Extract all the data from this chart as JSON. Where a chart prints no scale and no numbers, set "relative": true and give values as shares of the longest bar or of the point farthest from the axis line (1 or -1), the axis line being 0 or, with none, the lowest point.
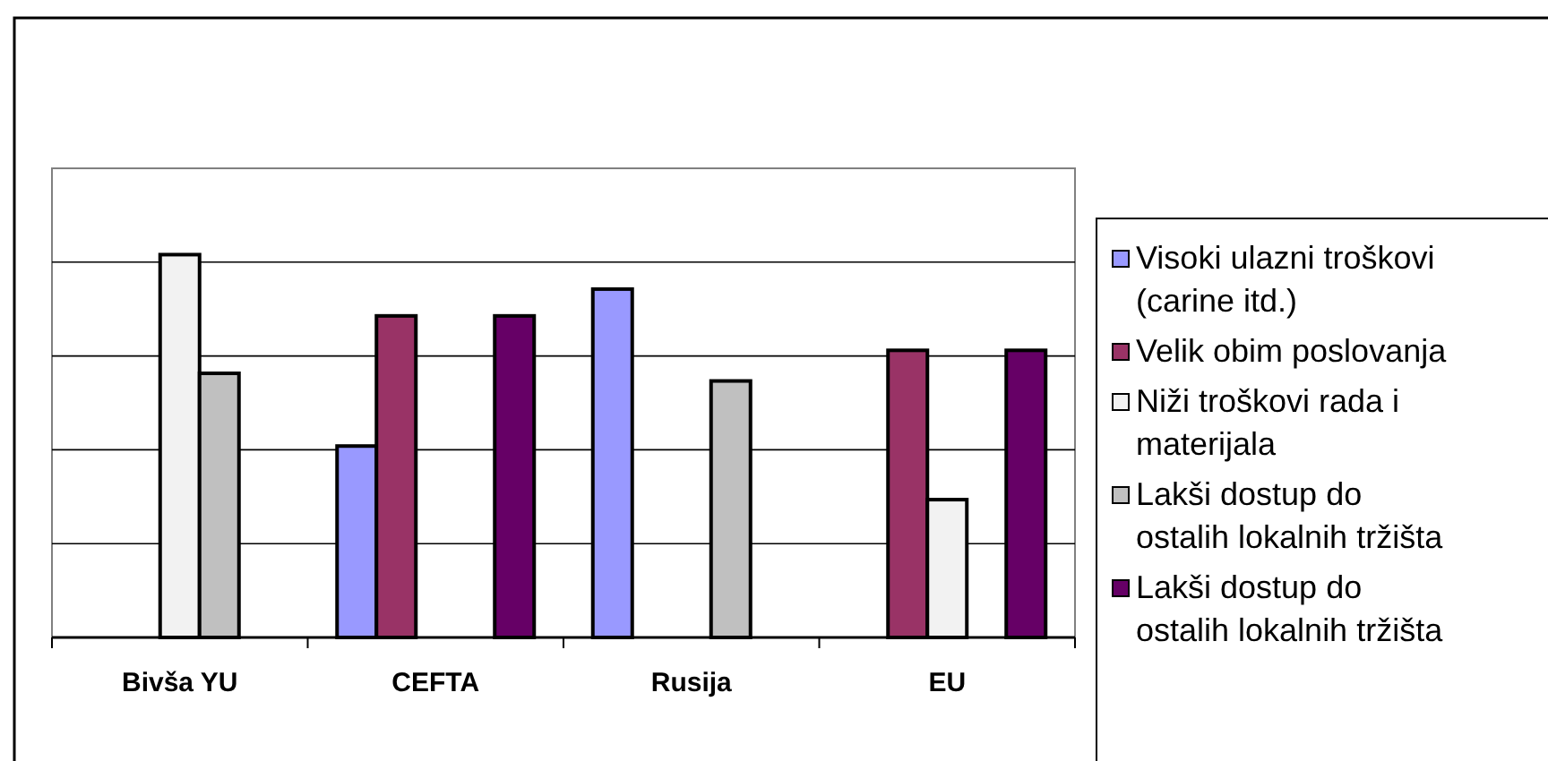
{
  "chart_data": {
    "type": "bar",
    "relative": true,
    "grid": "y",
    "legend": "right",
    "categories": [
      "Bivša YU",
      "CEFTA",
      "Rusija",
      "EU"
    ],
    "series": [
      {
        "name": "Visoki ulazni troškovi (carine itd.)",
        "color": "#9999ff",
        "values": [
          null,
          0.5,
          0.91,
          null
        ]
      },
      {
        "name": "Velik obim poslovanja",
        "color": "#993366",
        "values": [
          null,
          0.84,
          null,
          0.75
        ]
      },
      {
        "name": "Niži troškovi rada i materijala",
        "color": "#f2f2f2",
        "values": [
          1,
          null,
          null,
          0.36
        ]
      },
      {
        "name": "Lakši dostup do ostalih lokalnih tržišta",
        "color": "#c0c0c0",
        "values": [
          0.69,
          null,
          0.67,
          null
        ]
      },
      {
        "name": "Lakši dostup do ostalih lokalnih tržišta",
        "color": "#660066",
        "values": [
          null,
          0.84,
          null,
          0.75
        ]
      }
    ]
  }
}
